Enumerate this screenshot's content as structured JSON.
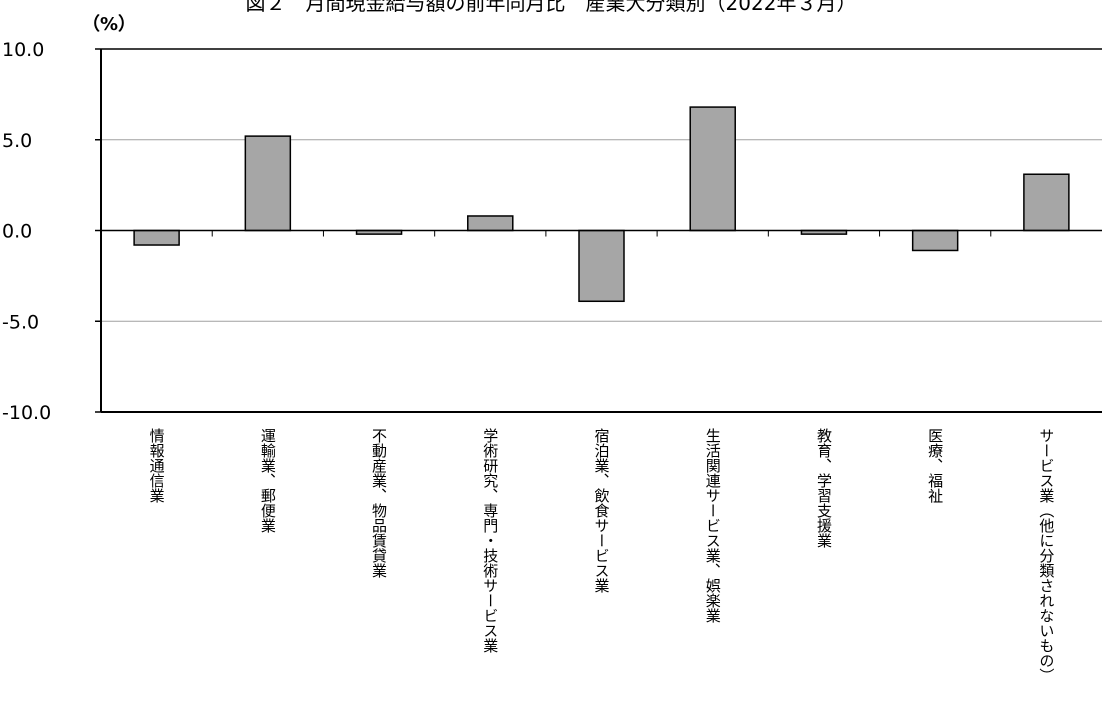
{
  "title": "図２　月間現金給与額の前年同月比　産業大分類別（2022年３月）",
  "y_unit": "（%）",
  "chart_data": {
    "type": "bar",
    "title": "図２　月間現金給与額の前年同月比　産業大分類別（2022年３月）",
    "xlabel": "",
    "ylabel": "（%）",
    "ylim": [
      -10,
      10
    ],
    "yticks": [
      10,
      5,
      0,
      -5,
      -10
    ],
    "ytick_labels": [
      "10.0",
      "5.0",
      "0.0",
      "-5.0",
      "-10.0"
    ],
    "grid": true,
    "legend": "none",
    "bar_color": "#a6a6a6",
    "categories": [
      "情報通信業",
      "運輸業、郵便業",
      "不動産業、物品賃貸業",
      "学術研究、専門・技術サービス業",
      "宿泊業、飲食サービス業",
      "生活関連サービス業、娯楽業",
      "教育、学習支援業",
      "医療、福祉",
      "サービス業（他に分類されないもの）"
    ],
    "values": [
      -0.8,
      5.2,
      -0.2,
      0.8,
      -3.9,
      6.8,
      -0.2,
      -1.1,
      3.1
    ]
  }
}
